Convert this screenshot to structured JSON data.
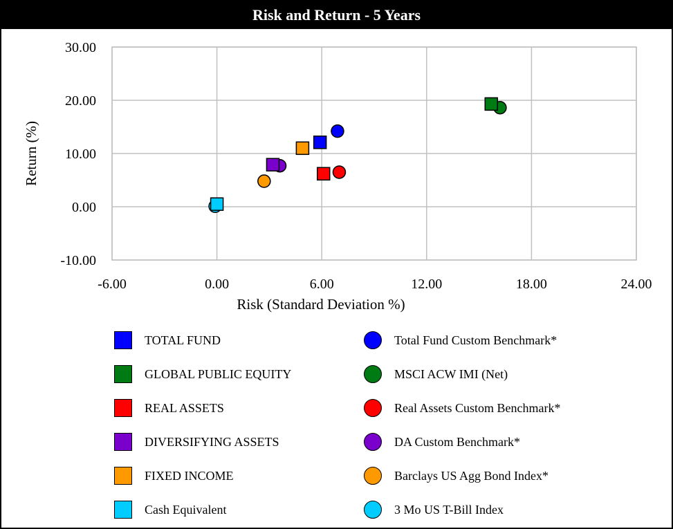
{
  "chart_data": {
    "type": "scatter",
    "title": "Risk and Return - 5 Years",
    "xlabel": "Risk (Standard Deviation %)",
    "ylabel": "Return (%)",
    "xlim": [
      -6,
      24
    ],
    "ylim": [
      -10,
      30
    ],
    "x_ticks": [
      "-6.00",
      "0.00",
      "6.00",
      "12.00",
      "18.00",
      "24.00"
    ],
    "y_ticks": [
      "30.00",
      "20.00",
      "10.00",
      "0.00",
      "-10.00"
    ],
    "grid": true,
    "legend_position": "bottom",
    "series": [
      {
        "name": "TOTAL FUND",
        "marker": "square",
        "color": "#0000ff",
        "x": 5.9,
        "y": 12.1
      },
      {
        "name": "Total Fund Custom Benchmark*",
        "marker": "circle",
        "color": "#0000ff",
        "x": 6.9,
        "y": 14.2
      },
      {
        "name": "GLOBAL PUBLIC EQUITY",
        "marker": "square",
        "color": "#007a12",
        "x": 15.7,
        "y": 19.3
      },
      {
        "name": "MSCI ACW IMI (Net)",
        "marker": "circle",
        "color": "#007a12",
        "x": 16.2,
        "y": 18.6
      },
      {
        "name": "REAL ASSETS",
        "marker": "square",
        "color": "#ff0000",
        "x": 6.1,
        "y": 6.2
      },
      {
        "name": "Real Assets Custom Benchmark*",
        "marker": "circle",
        "color": "#ff0000",
        "x": 7.0,
        "y": 6.5
      },
      {
        "name": "DIVERSIFYING ASSETS",
        "marker": "square",
        "color": "#7a00cc",
        "x": 3.2,
        "y": 7.9
      },
      {
        "name": "DA Custom Benchmark*",
        "marker": "circle",
        "color": "#7a00cc",
        "x": 3.6,
        "y": 7.7
      },
      {
        "name": "FIXED INCOME",
        "marker": "square",
        "color": "#ff9900",
        "x": 4.9,
        "y": 11.0
      },
      {
        "name": "Barclays US Agg Bond Index*",
        "marker": "circle",
        "color": "#ff9900",
        "x": 2.7,
        "y": 4.8
      },
      {
        "name": "Cash Equivalent",
        "marker": "square",
        "color": "#00ccff",
        "x": 0.0,
        "y": 0.5
      },
      {
        "name": "3 Mo US T-Bill Index",
        "marker": "circle",
        "color": "#00ccff",
        "x": -0.1,
        "y": 0.1
      }
    ]
  }
}
